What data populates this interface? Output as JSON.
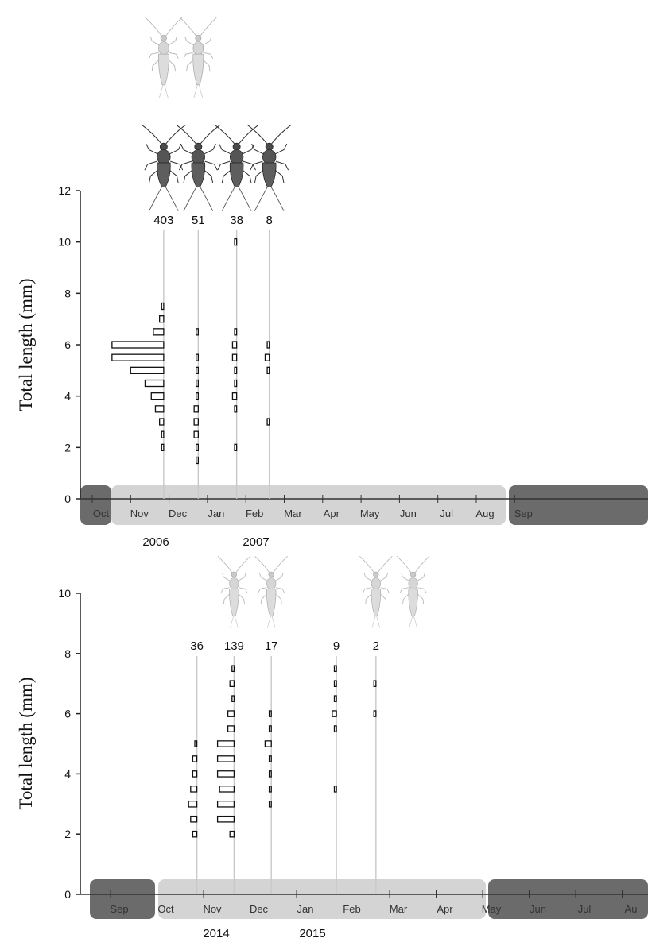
{
  "chart_data": [
    {
      "type": "bar",
      "subtype": "length-frequency histograms on a monthly timeline",
      "ylabel": "Total length (mm)",
      "ylim": [
        0,
        12
      ],
      "yticks": [
        0,
        2,
        4,
        6,
        8,
        10,
        12
      ],
      "months": [
        "Oct",
        "Nov",
        "Dec",
        "Jan",
        "Feb",
        "Mar",
        "Apr",
        "May",
        "Jun",
        "Jul",
        "Aug",
        "Sep"
      ],
      "years": [
        "2006",
        "2007"
      ],
      "season_bands": [
        {
          "from": "Oct",
          "to": "Oct",
          "shade": "dark"
        },
        {
          "from": "Oct",
          "to": "Jun",
          "shade": "light"
        },
        {
          "from": "Jul",
          "to": "Sep",
          "shade": "dark"
        }
      ],
      "samples": [
        {
          "n": "403",
          "month_pos": 1.55,
          "bins": [
            {
              "y": 2.0,
              "w": 1
            },
            {
              "y": 2.5,
              "w": 1
            },
            {
              "y": 3.0,
              "w": 2
            },
            {
              "y": 3.5,
              "w": 4
            },
            {
              "y": 4.0,
              "w": 6
            },
            {
              "y": 4.5,
              "w": 9
            },
            {
              "y": 5.0,
              "w": 16
            },
            {
              "y": 5.5,
              "w": 25
            },
            {
              "y": 6.0,
              "w": 25
            },
            {
              "y": 6.5,
              "w": 5
            },
            {
              "y": 7.0,
              "w": 2
            },
            {
              "y": 7.5,
              "w": 1
            }
          ]
        },
        {
          "n": "51",
          "month_pos": 2.45,
          "bins": [
            {
              "y": 1.5,
              "w": 1
            },
            {
              "y": 2.0,
              "w": 1
            },
            {
              "y": 2.5,
              "w": 2
            },
            {
              "y": 3.0,
              "w": 2
            },
            {
              "y": 3.5,
              "w": 2
            },
            {
              "y": 4.0,
              "w": 1
            },
            {
              "y": 4.5,
              "w": 1
            },
            {
              "y": 5.0,
              "w": 1
            },
            {
              "y": 5.5,
              "w": 1
            },
            {
              "y": 6.5,
              "w": 1
            }
          ]
        },
        {
          "n": "38",
          "month_pos": 3.45,
          "bins": [
            {
              "y": 2.0,
              "w": 1
            },
            {
              "y": 3.5,
              "w": 1
            },
            {
              "y": 4.0,
              "w": 2
            },
            {
              "y": 4.5,
              "w": 1
            },
            {
              "y": 5.0,
              "w": 1
            },
            {
              "y": 5.5,
              "w": 2
            },
            {
              "y": 6.0,
              "w": 2
            },
            {
              "y": 6.5,
              "w": 1
            },
            {
              "y": 10.0,
              "w": 1
            }
          ]
        },
        {
          "n": "8",
          "month_pos": 4.3,
          "bins": [
            {
              "y": 3.0,
              "w": 1
            },
            {
              "y": 5.0,
              "w": 1
            },
            {
              "y": 5.5,
              "w": 2
            },
            {
              "y": 6.0,
              "w": 1
            }
          ]
        }
      ],
      "icons": [
        {
          "style": "pale",
          "month_pos": 1.55,
          "row": "top"
        },
        {
          "style": "pale",
          "month_pos": 2.45,
          "row": "top"
        },
        {
          "style": "dark",
          "month_pos": 1.55,
          "row": "bottom"
        },
        {
          "style": "dark",
          "month_pos": 2.45,
          "row": "bottom"
        },
        {
          "style": "dark",
          "month_pos": 3.45,
          "row": "bottom"
        },
        {
          "style": "dark",
          "month_pos": 4.3,
          "row": "bottom"
        }
      ]
    },
    {
      "type": "bar",
      "subtype": "length-frequency histograms on a monthly timeline",
      "ylabel": "Total length (mm)",
      "ylim": [
        0,
        10
      ],
      "yticks": [
        0,
        2,
        4,
        6,
        8,
        10
      ],
      "months": [
        "Sep",
        "Oct",
        "Nov",
        "Dec",
        "Jan",
        "Feb",
        "Mar",
        "Apr",
        "May",
        "Jun",
        "Jul",
        "Au"
      ],
      "years": [
        "2014",
        "2015"
      ],
      "season_bands": [
        {
          "from": "Sep",
          "to": "Sep",
          "shade": "dark"
        },
        {
          "from": "Oct",
          "to": "Apr",
          "shade": "light"
        },
        {
          "from": "May",
          "to": "Au",
          "shade": "dark"
        }
      ],
      "samples": [
        {
          "n": "36",
          "month_pos": 1.6,
          "bins": [
            {
              "y": 2.0,
              "w": 2
            },
            {
              "y": 2.5,
              "w": 3
            },
            {
              "y": 3.0,
              "w": 4
            },
            {
              "y": 3.5,
              "w": 3
            },
            {
              "y": 4.0,
              "w": 2
            },
            {
              "y": 4.5,
              "w": 2
            },
            {
              "y": 5.0,
              "w": 1
            }
          ]
        },
        {
          "n": "139",
          "month_pos": 2.4,
          "bins": [
            {
              "y": 2.0,
              "w": 2
            },
            {
              "y": 2.5,
              "w": 8
            },
            {
              "y": 3.0,
              "w": 8
            },
            {
              "y": 3.5,
              "w": 7
            },
            {
              "y": 4.0,
              "w": 8
            },
            {
              "y": 4.5,
              "w": 8
            },
            {
              "y": 5.0,
              "w": 8
            },
            {
              "y": 5.5,
              "w": 3
            },
            {
              "y": 6.0,
              "w": 3
            },
            {
              "y": 6.5,
              "w": 1
            },
            {
              "y": 7.0,
              "w": 2
            },
            {
              "y": 7.5,
              "w": 1
            }
          ]
        },
        {
          "n": "17",
          "month_pos": 3.2,
          "bins": [
            {
              "y": 3.0,
              "w": 1
            },
            {
              "y": 3.5,
              "w": 1
            },
            {
              "y": 4.0,
              "w": 1
            },
            {
              "y": 4.5,
              "w": 1
            },
            {
              "y": 5.0,
              "w": 3
            },
            {
              "y": 5.5,
              "w": 1
            },
            {
              "y": 6.0,
              "w": 1
            }
          ]
        },
        {
          "n": "9",
          "month_pos": 4.6,
          "bins": [
            {
              "y": 3.5,
              "w": 1
            },
            {
              "y": 5.5,
              "w": 1
            },
            {
              "y": 6.0,
              "w": 2
            },
            {
              "y": 6.5,
              "w": 1
            },
            {
              "y": 7.0,
              "w": 1
            },
            {
              "y": 7.5,
              "w": 1
            }
          ]
        },
        {
          "n": "2",
          "month_pos": 5.45,
          "bins": [
            {
              "y": 6.0,
              "w": 1
            },
            {
              "y": 7.0,
              "w": 1
            }
          ]
        }
      ],
      "icons": [
        {
          "style": "pale",
          "month_pos": 2.4,
          "row": "single"
        },
        {
          "style": "pale",
          "month_pos": 3.2,
          "row": "single"
        },
        {
          "style": "pale",
          "month_pos": 5.45,
          "row": "single"
        },
        {
          "style": "pale",
          "month_pos": 6.25,
          "row": "single"
        }
      ]
    }
  ]
}
